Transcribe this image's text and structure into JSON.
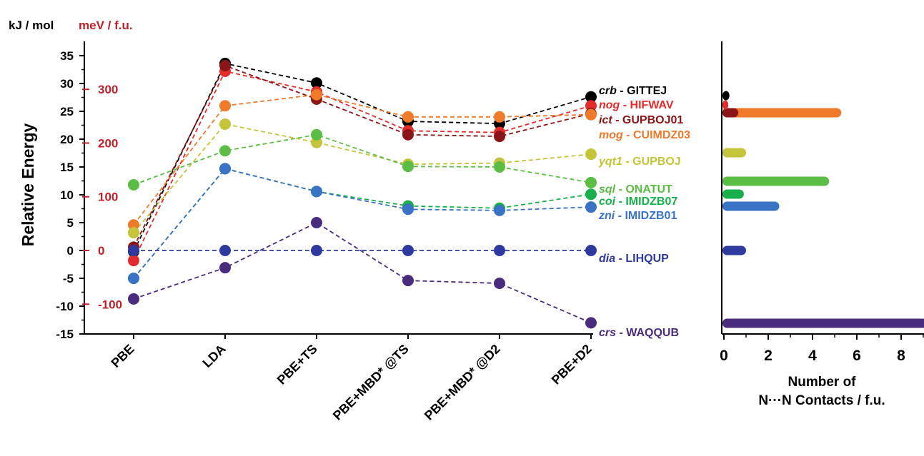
{
  "header": {
    "unit_kj": "kJ / mol",
    "unit_mev": "meV / f.u."
  },
  "colors": {
    "axis": "#000000",
    "mev_axis": "#c0202a"
  },
  "chart_data": [
    {
      "type": "line",
      "ylabel": "Relative Energy",
      "ylim": [
        -15,
        37
      ],
      "y_ticks": [
        "-15",
        "-10",
        "-5",
        "0",
        "5",
        "10",
        "15",
        "20",
        "25",
        "30",
        "35"
      ],
      "mev_ticks": [
        {
          "text": "300",
          "value": 300
        },
        {
          "text": "200",
          "value": 200
        },
        {
          "text": "100",
          "value": 100
        },
        {
          "text": "0",
          "value": 0
        },
        {
          "text": "-100",
          "value": -100
        }
      ],
      "categories": [
        "PBE",
        "LDA",
        "PBE+TS",
        "PBE+MBD* @TS",
        "PBE+MBD* @D2",
        "PBE+D2"
      ],
      "grid": false,
      "series": [
        {
          "name": "crb - GITTEJ",
          "topology": "crb",
          "refcode": "GITTEJ",
          "color": "#000000",
          "values": [
            -0.2,
            33.6,
            30.1,
            23.2,
            22.8,
            27.6
          ]
        },
        {
          "name": "nog - HIFWAV",
          "topology": "nog",
          "refcode": "HIFWAV",
          "color": "#e32b2b",
          "values": [
            -1.8,
            32.2,
            28.5,
            21.5,
            21.2,
            26.0
          ]
        },
        {
          "name": "ict - GUPBOJ01",
          "topology": "ict",
          "refcode": "GUPBOJ01",
          "color": "#8b1518",
          "values": [
            0.6,
            33.2,
            27.2,
            20.8,
            20.5,
            24.6
          ]
        },
        {
          "name": "mog - CUIMDZ03",
          "topology": "mog",
          "refcode": "CUIMDZ03",
          "color": "#ef7a2a",
          "values": [
            4.6,
            26.0,
            28.0,
            24.0,
            24.0,
            24.4
          ]
        },
        {
          "name": "yqt1 - GUPBOJ",
          "topology": "yqt1",
          "refcode": "GUPBOJ",
          "color": "#c4c43a",
          "values": [
            3.2,
            22.7,
            19.4,
            15.5,
            15.7,
            17.3
          ]
        },
        {
          "name": "sql - ONATUT",
          "topology": "sql",
          "refcode": "ONATUT",
          "color": "#5cbd44",
          "values": [
            11.8,
            17.9,
            20.8,
            15.1,
            15.0,
            12.2
          ]
        },
        {
          "name": "coi - IMIDZB07",
          "topology": "coi",
          "refcode": "IMIDZB07",
          "color": "#17b04b",
          "values": [
            -5.0,
            14.7,
            10.6,
            8.0,
            7.6,
            10.1
          ]
        },
        {
          "name": "zni - IMIDZB01",
          "topology": "zni",
          "refcode": "IMIDZB01",
          "color": "#3a73c6",
          "values": [
            -5.0,
            14.7,
            10.6,
            7.4,
            7.2,
            7.8
          ]
        },
        {
          "name": "dia - LIHQUP",
          "topology": "dia",
          "refcode": "LIHQUP",
          "color": "#2f3aa0",
          "values": [
            0.0,
            0.0,
            0.0,
            0.0,
            0.0,
            0.0
          ]
        },
        {
          "name": "crs - WAQQUB",
          "topology": "crs",
          "refcode": "WAQQUB",
          "color": "#4a2c7e",
          "values": [
            -8.7,
            -3.1,
            5.0,
            -5.4,
            -5.9,
            -13.0
          ]
        }
      ]
    },
    {
      "type": "bar",
      "orientation": "horizontal",
      "xlabel_line1": "Number of",
      "xlabel_line2": "N···N Contacts / f.u.",
      "xlim": [
        0,
        9
      ],
      "x_ticks": [
        "0",
        "2",
        "4",
        "6",
        "8"
      ],
      "bars": [
        {
          "series": "crb - GITTEJ",
          "value": 0.25
        },
        {
          "series": "nog - HIFWAV",
          "value": 0.2
        },
        {
          "series": "ict - GUPBOJ01",
          "value": 0.65
        },
        {
          "series": "mog - CUIMDZ03",
          "value": 5.3
        },
        {
          "series": "yqt1 - GUPBOJ",
          "value": 1.0
        },
        {
          "series": "sql - ONATUT",
          "value": 4.75
        },
        {
          "series": "coi - IMIDZB07",
          "value": 0.9
        },
        {
          "series": "zni - IMIDZB01",
          "value": 2.5
        },
        {
          "series": "dia - LIHQUP",
          "value": 1.0
        },
        {
          "series": "crs - WAQQUB",
          "value": 9.2
        }
      ]
    }
  ]
}
